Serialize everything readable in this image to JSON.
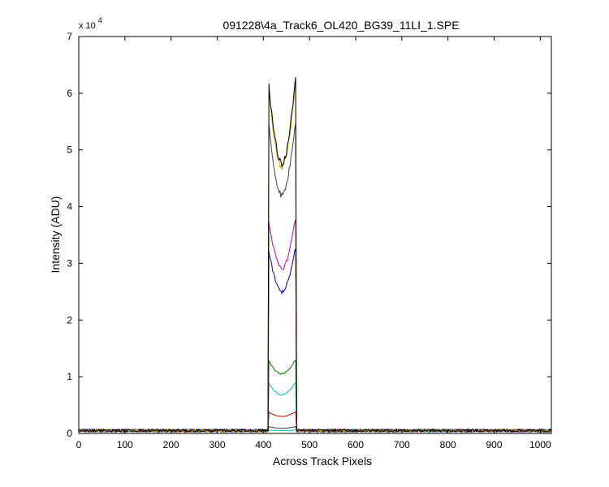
{
  "chart_data": {
    "type": "line",
    "title": "091228\\4a_Track6_OL420_BG39_11LI_1.SPE",
    "xlabel": "Across Track Pixels",
    "ylabel": "Intensity (ADU)",
    "y_exponent_label": "x 10",
    "y_exponent_power": "4",
    "xlim": [
      0,
      1024
    ],
    "ylim": [
      0,
      70000
    ],
    "x_ticks": [
      0,
      100,
      200,
      300,
      400,
      500,
      600,
      700,
      800,
      900,
      1000
    ],
    "x_tick_labels": [
      "0",
      "100",
      "200",
      "300",
      "400",
      "500",
      "600",
      "700",
      "800",
      "900",
      "1000"
    ],
    "y_ticks": [
      0,
      10000,
      20000,
      30000,
      40000,
      50000,
      60000,
      70000
    ],
    "y_tick_labels": [
      "0",
      "1",
      "2",
      "3",
      "4",
      "5",
      "6",
      "7"
    ],
    "grid": false,
    "legend": "none",
    "signal_region": {
      "x_start": 412,
      "x_end": 470,
      "dip_center": 440
    },
    "baseline": 500,
    "series": [
      {
        "color": "#000000",
        "edge_peak": 62500,
        "dip_min": 47500
      },
      {
        "color": "#c8b400",
        "edge_peak": 61500,
        "dip_min": 47000
      },
      {
        "color": "#404040",
        "edge_peak": 55000,
        "dip_min": 42000
      },
      {
        "color": "#bf00bf",
        "edge_peak": 38000,
        "dip_min": 29000
      },
      {
        "color": "#0000cc",
        "edge_peak": 32500,
        "dip_min": 25000
      },
      {
        "color": "#008000",
        "edge_peak": 13000,
        "dip_min": 10500
      },
      {
        "color": "#00bfbf",
        "edge_peak": 9000,
        "dip_min": 6800
      },
      {
        "color": "#cc0000",
        "edge_peak": 3800,
        "dip_min": 3000
      },
      {
        "color": "#404040",
        "edge_peak": 1200,
        "dip_min": 900
      },
      {
        "color": "#00bfbf",
        "edge_peak": 600,
        "dip_min": 500
      }
    ]
  }
}
